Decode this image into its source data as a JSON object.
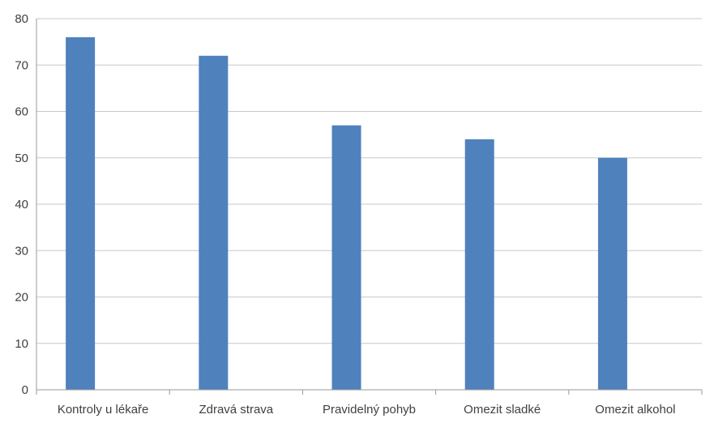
{
  "chart_data": {
    "type": "bar",
    "categories": [
      "Kontroly u lékaře",
      "Zdravá strava",
      "Pravidelný pohyb",
      "Omezit sladké",
      "Omezit alkohol"
    ],
    "values": [
      76,
      72,
      57,
      54,
      50
    ],
    "title": "",
    "xlabel": "",
    "ylabel": "",
    "ylim": [
      0,
      80
    ],
    "yticks": [
      0,
      10,
      20,
      30,
      40,
      50,
      60,
      70,
      80
    ],
    "grid": true,
    "legend": "none",
    "bar_color": "#4f81bd",
    "grid_color": "#c8c8c8",
    "axis_color": "#9a9a9a",
    "text_color": "#404040"
  }
}
